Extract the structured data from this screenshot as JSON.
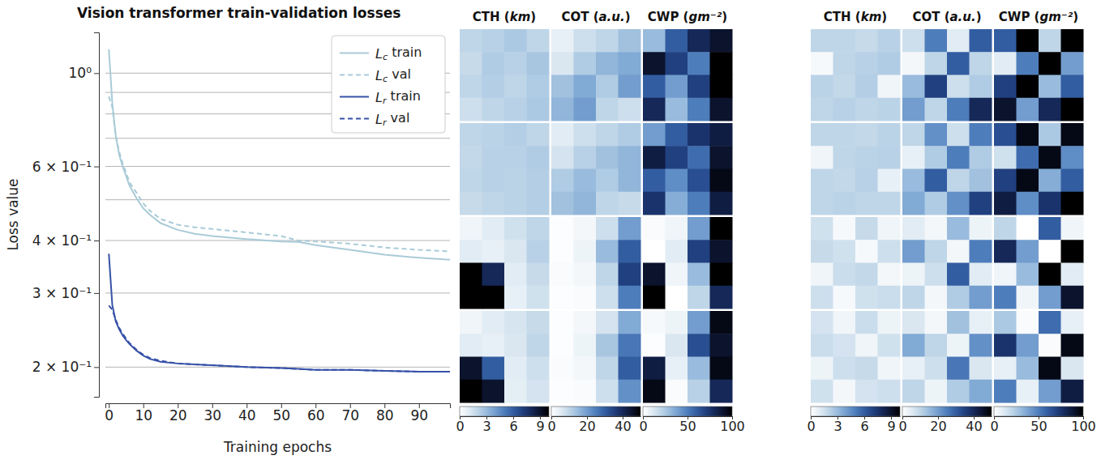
{
  "chart_data": [
    {
      "type": "line",
      "title": "Vision transformer train-validation losses",
      "x_label": "Training epochs",
      "y_label": "Loss value",
      "log": "y",
      "grid": true,
      "legend": "upper right",
      "xlim": [
        -1,
        99
      ],
      "xticks": [
        0,
        10,
        20,
        30,
        40,
        50,
        60,
        70,
        80,
        90
      ],
      "ylim": [
        0.17,
        1.25
      ],
      "yticks": [
        {
          "value": 0.2,
          "label": "2 × 10⁻¹"
        },
        {
          "value": 0.3,
          "label": "3 × 10⁻¹"
        },
        {
          "value": 0.4,
          "label": "4 × 10⁻¹"
        },
        {
          "value": 0.6,
          "label": "6 × 10⁻¹"
        },
        {
          "value": 1,
          "label": "10⁰"
        }
      ],
      "minor_yticks": [
        0.5,
        0.7,
        0.8,
        0.9
      ],
      "x": [
        0,
        1,
        2,
        3,
        4,
        5,
        6,
        8,
        10,
        12,
        15,
        20,
        25,
        30,
        40,
        50,
        55,
        60,
        70,
        80,
        90,
        99
      ],
      "series": [
        {
          "name": "Lc train",
          "color": "#a9cbd7",
          "line_style": "solid",
          "values": [
            1.14,
            0.85,
            0.71,
            0.64,
            0.6,
            0.57,
            0.54,
            0.505,
            0.477,
            0.46,
            0.44,
            0.424,
            0.415,
            0.41,
            0.403,
            0.398,
            0.397,
            0.39,
            0.38,
            0.37,
            0.364,
            0.36
          ]
        },
        {
          "name": "Lc val",
          "color": "#a9cbd7",
          "line_style": "dashed",
          "values": [
            0.88,
            0.83,
            0.71,
            0.65,
            0.61,
            0.58,
            0.55,
            0.52,
            0.49,
            0.47,
            0.45,
            0.436,
            0.43,
            0.426,
            0.418,
            0.41,
            0.4,
            0.398,
            0.393,
            0.385,
            0.38,
            0.377
          ]
        },
        {
          "name": "Lr train",
          "color": "#3752a8",
          "line_style": "solid",
          "values": [
            0.372,
            0.281,
            0.257,
            0.246,
            0.238,
            0.232,
            0.227,
            0.219,
            0.213,
            0.209,
            0.206,
            0.204,
            0.203,
            0.202,
            0.2,
            0.199,
            0.198,
            0.197,
            0.197,
            0.196,
            0.195,
            0.195
          ]
        },
        {
          "name": "Lr val",
          "color": "#3752a8",
          "line_style": "dashed",
          "values": [
            0.28,
            0.274,
            0.259,
            0.248,
            0.24,
            0.234,
            0.228,
            0.22,
            0.214,
            0.21,
            0.207,
            0.204,
            0.203,
            0.202,
            0.2,
            0.199,
            0.198,
            0.197,
            0.197,
            0.196,
            0.195,
            0.195
          ]
        }
      ]
    },
    {
      "type": "heatmap",
      "columns": [
        "CTH (km)",
        "COT (a.u.)",
        "CWP (gm⁻²)"
      ],
      "colorbars": [
        {
          "range": [
            0,
            10
          ],
          "ticks": [
            0,
            3,
            6,
            9
          ]
        },
        {
          "range": [
            0,
            50
          ],
          "ticks": [
            0,
            20,
            40
          ]
        },
        {
          "range": [
            0,
            100
          ],
          "ticks": [
            0,
            50,
            100
          ]
        }
      ],
      "rows": [
        [
          [
            [
              2,
              2.2,
              2.5,
              2
            ],
            [
              1.8,
              2.4,
              2.2,
              2.6
            ],
            [
              2,
              2.3,
              2,
              2.4
            ],
            [
              1.6,
              2,
              2.2,
              2.5
            ]
          ],
          [
            [
              4,
              8,
              10,
              14
            ],
            [
              6,
              12,
              16,
              18
            ],
            [
              14,
              18,
              12,
              20
            ],
            [
              16,
              20,
              10,
              8
            ]
          ],
          [
            [
              30,
              60,
              80,
              90
            ],
            [
              90,
              70,
              50,
              100
            ],
            [
              60,
              40,
              70,
              100
            ],
            [
              80,
              30,
              50,
              90
            ]
          ]
        ],
        [
          [
            [
              2,
              2.1,
              2.3,
              2
            ],
            [
              1.9,
              2.2,
              2.2,
              2.4
            ],
            [
              2,
              2.2,
              2.1,
              2.3
            ],
            [
              1.8,
              2,
              2.1,
              2.3
            ]
          ],
          [
            [
              5,
              8,
              10,
              12
            ],
            [
              7,
              11,
              14,
              16
            ],
            [
              12,
              15,
              12,
              16
            ],
            [
              14,
              16,
              10,
              9
            ]
          ],
          [
            [
              40,
              60,
              75,
              85
            ],
            [
              85,
              70,
              55,
              90
            ],
            [
              60,
              45,
              65,
              95
            ],
            [
              75,
              35,
              50,
              85
            ]
          ]
        ],
        [
          [
            [
              0.5,
              1,
              1.5,
              2
            ],
            [
              1,
              0.8,
              1.2,
              2.2
            ],
            [
              10,
              8,
              1,
              1.8
            ],
            [
              10,
              10,
              0.8,
              1.5
            ]
          ],
          [
            [
              0.5,
              2,
              8,
              20
            ],
            [
              0.5,
              3,
              15,
              30
            ],
            [
              1,
              2,
              10,
              35
            ],
            [
              0.5,
              1,
              8,
              25
            ]
          ],
          [
            [
              2,
              5,
              40,
              100
            ],
            [
              0,
              10,
              70,
              90
            ],
            [
              90,
              5,
              30,
              100
            ],
            [
              100,
              0,
              20,
              80
            ]
          ]
        ],
        [
          [
            [
              0.5,
              1,
              1.3,
              1.8
            ],
            [
              1,
              0.8,
              1.2,
              2
            ],
            [
              9,
              6,
              1,
              1.6
            ],
            [
              10,
              9,
              0.9,
              1.4
            ]
          ],
          [
            [
              0.5,
              2,
              7,
              18
            ],
            [
              0.5,
              3,
              13,
              26
            ],
            [
              1,
              2,
              10,
              30
            ],
            [
              0.5,
              1,
              8,
              22
            ]
          ],
          [
            [
              3,
              6,
              40,
              95
            ],
            [
              1,
              12,
              65,
              90
            ],
            [
              85,
              8,
              30,
              95
            ],
            [
              95,
              2,
              22,
              80
            ]
          ]
        ]
      ]
    },
    {
      "type": "heatmap",
      "columns": [
        "CTH (km)",
        "COT (a.u.)",
        "CWP (gm⁻²)"
      ],
      "colorbars": [
        {
          "range": [
            0,
            10
          ],
          "ticks": [
            0,
            3,
            6,
            9
          ]
        },
        {
          "range": [
            0,
            50
          ],
          "ticks": [
            0,
            20,
            40
          ]
        },
        {
          "range": [
            0,
            100
          ],
          "ticks": [
            0,
            50,
            100
          ]
        }
      ],
      "rows": [
        [
          [
            [
              2,
              2,
              1.8,
              2.2
            ],
            [
              0.3,
              2,
              2.2,
              2.4
            ],
            [
              2.1,
              1.9,
              2.3,
              0.5
            ],
            [
              2,
              2.2,
              2,
              2.1
            ]
          ],
          [
            [
              8,
              25,
              5,
              30
            ],
            [
              2,
              10,
              30,
              10
            ],
            [
              15,
              35,
              8,
              12
            ],
            [
              20,
              10,
              25,
              40
            ]
          ],
          [
            [
              60,
              100,
              20,
              100
            ],
            [
              10,
              50,
              100,
              40
            ],
            [
              70,
              100,
              30,
              60
            ],
            [
              90,
              40,
              80,
              100
            ]
          ]
        ],
        [
          [
            [
              2,
              2,
              1.9,
              2.1
            ],
            [
              0.5,
              2,
              2.1,
              2.2
            ],
            [
              2,
              1.9,
              2.2,
              0.8
            ],
            [
              2,
              2.1,
              2,
              2
            ]
          ],
          [
            [
              10,
              22,
              8,
              25
            ],
            [
              4,
              12,
              25,
              12
            ],
            [
              15,
              30,
              10,
              14
            ],
            [
              18,
              12,
              22,
              35
            ]
          ],
          [
            [
              65,
              95,
              25,
              95
            ],
            [
              15,
              55,
              95,
              45
            ],
            [
              70,
              95,
              35,
              60
            ],
            [
              85,
              45,
              75,
              100
            ]
          ]
        ],
        [
          [
            [
              1.5,
              0.3,
              1.8,
              0.5
            ],
            [
              1.8,
              1.5,
              0.3,
              1.6
            ],
            [
              0.5,
              1.7,
              1.9,
              0.4
            ],
            [
              1.6,
              0.3,
              1.5,
              1.7
            ]
          ],
          [
            [
              5,
              2,
              15,
              3
            ],
            [
              20,
              10,
              2,
              25
            ],
            [
              3,
              8,
              30,
              5
            ],
            [
              10,
              2,
              12,
              20
            ]
          ],
          [
            [
              20,
              0,
              60,
              5
            ],
            [
              80,
              40,
              0,
              100
            ],
            [
              5,
              30,
              100,
              10
            ],
            [
              50,
              5,
              40,
              90
            ]
          ]
        ],
        [
          [
            [
              1.4,
              0.5,
              1.7,
              0.6
            ],
            [
              1.7,
              1.4,
              0.5,
              1.5
            ],
            [
              0.6,
              1.6,
              1.8,
              0.5
            ],
            [
              1.5,
              0.4,
              1.4,
              1.6
            ]
          ],
          [
            [
              6,
              2,
              14,
              4
            ],
            [
              18,
              10,
              3,
              22
            ],
            [
              4,
              8,
              26,
              6
            ],
            [
              10,
              3,
              12,
              18
            ]
          ],
          [
            [
              25,
              2,
              55,
              8
            ],
            [
              75,
              40,
              2,
              95
            ],
            [
              8,
              30,
              95,
              12
            ],
            [
              50,
              8,
              40,
              85
            ]
          ]
        ]
      ]
    }
  ]
}
